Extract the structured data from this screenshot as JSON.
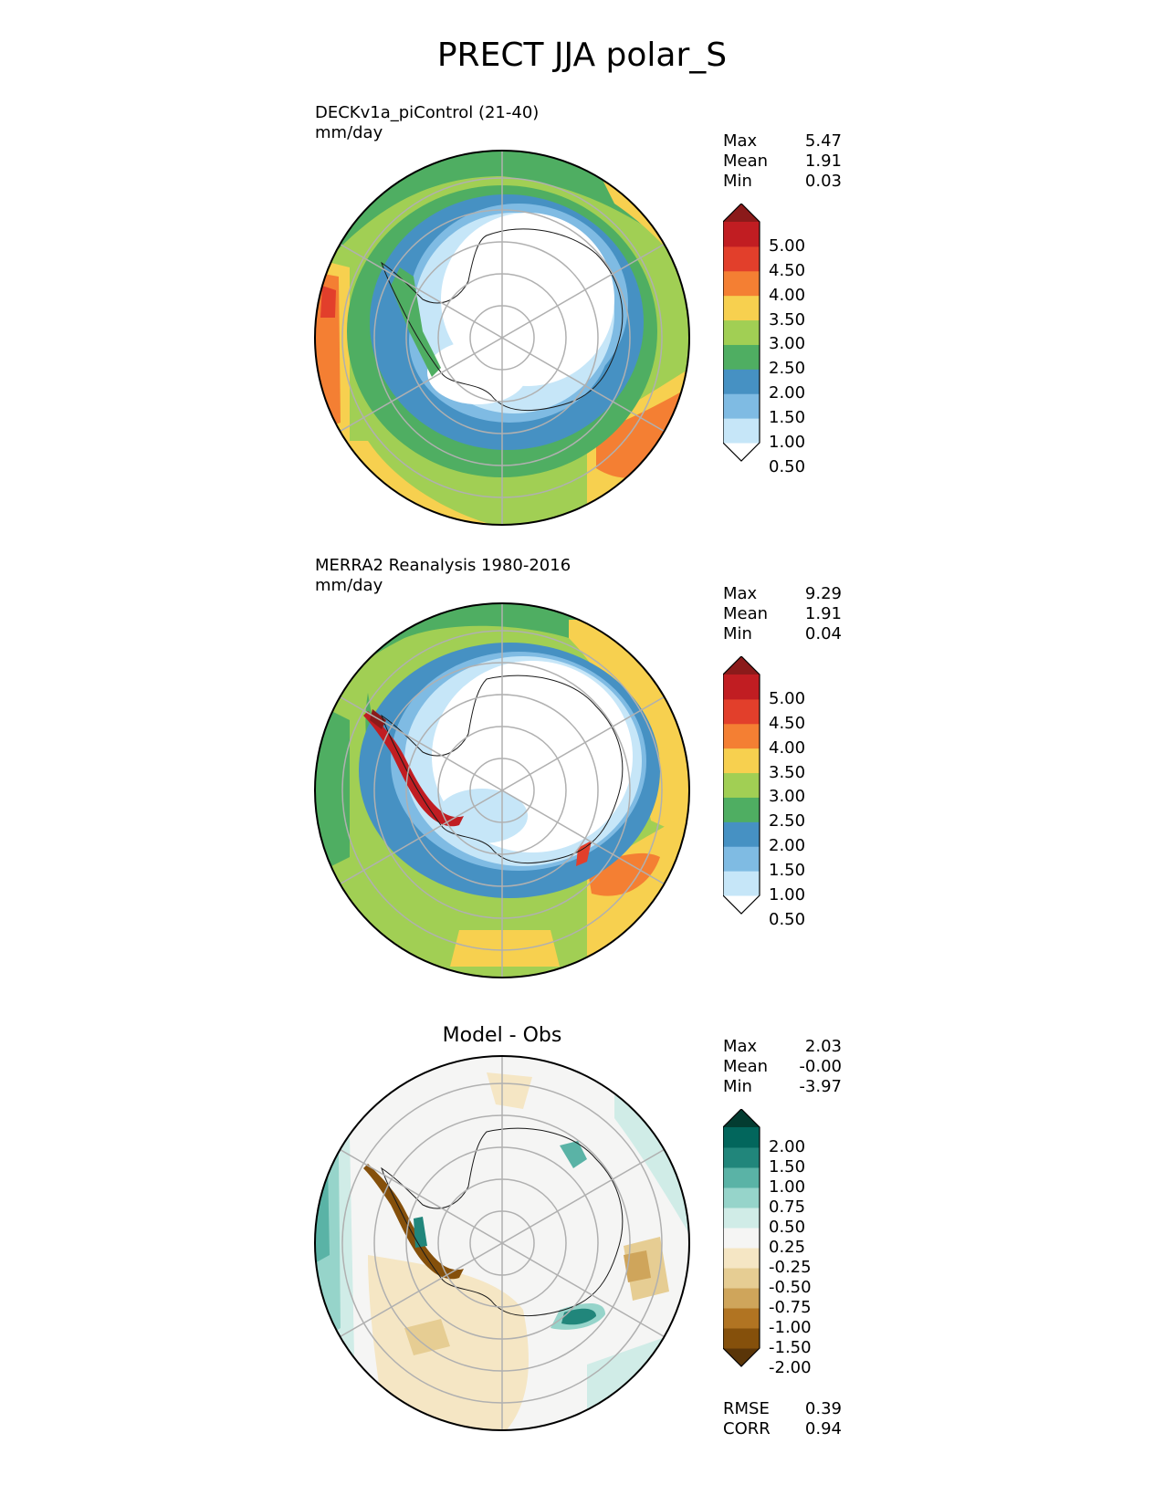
{
  "figure": {
    "title": "PRECT JJA polar_S"
  },
  "panels": [
    {
      "id": "test",
      "title_line1": "DECKv1a_piControl (21-40)",
      "title_line2": "mm/day",
      "stats": [
        {
          "label": "Max",
          "value": "5.47"
        },
        {
          "label": "Mean",
          "value": "1.91"
        },
        {
          "label": "Min",
          "value": "0.03"
        }
      ]
    },
    {
      "id": "ref",
      "title_line1": "MERRA2 Reanalysis 1980-2016",
      "title_line2": "mm/day",
      "stats": [
        {
          "label": "Max",
          "value": "9.29"
        },
        {
          "label": "Mean",
          "value": "1.91"
        },
        {
          "label": "Min",
          "value": "0.04"
        }
      ]
    },
    {
      "id": "diff",
      "title": "Model - Obs",
      "stats": [
        {
          "label": "Max",
          "value": "2.03"
        },
        {
          "label": "Mean",
          "value": "-0.00"
        },
        {
          "label": "Min",
          "value": "-3.97"
        }
      ],
      "metrics": [
        {
          "label": "RMSE",
          "value": "0.39"
        },
        {
          "label": "CORR",
          "value": "0.94"
        }
      ]
    }
  ],
  "colorbars": {
    "precip": {
      "labels": [
        "5.00",
        "4.50",
        "4.00",
        "3.50",
        "3.00",
        "2.50",
        "2.00",
        "1.50",
        "1.00",
        "0.50"
      ],
      "colors": [
        "#ffffff",
        "#c6e6f8",
        "#7fbbe3",
        "#4691c3",
        "#4fae62",
        "#a1cf54",
        "#f7d04f",
        "#f47f33",
        "#e23f2b",
        "#c11d22",
        "#8b1a1a"
      ]
    },
    "diff": {
      "labels": [
        "2.00",
        "1.50",
        "1.00",
        "0.75",
        "0.50",
        "0.25",
        "-0.25",
        "-0.50",
        "-0.75",
        "-1.00",
        "-1.50",
        "-2.00"
      ],
      "colors": [
        "#5a3508",
        "#85500b",
        "#b17422",
        "#cfa55b",
        "#e6cd93",
        "#f5e6c4",
        "#f5f5f4",
        "#d0ece7",
        "#96d4ca",
        "#5ab3a6",
        "#21867b",
        "#02665c",
        "#033c31"
      ]
    }
  },
  "chart_data": [
    {
      "type": "heatmap",
      "title": "DECKv1a_piControl (21-40)",
      "units": "mm/day",
      "projection": "south polar stereographic",
      "levels": [
        0.5,
        1.0,
        1.5,
        2.0,
        2.5,
        3.0,
        3.5,
        4.0,
        4.5,
        5.0
      ],
      "max": 5.47,
      "mean": 1.91,
      "min": 0.03
    },
    {
      "type": "heatmap",
      "title": "MERRA2 Reanalysis 1980-2016",
      "units": "mm/day",
      "projection": "south polar stereographic",
      "levels": [
        0.5,
        1.0,
        1.5,
        2.0,
        2.5,
        3.0,
        3.5,
        4.0,
        4.5,
        5.0
      ],
      "max": 9.29,
      "mean": 1.91,
      "min": 0.04
    },
    {
      "type": "heatmap",
      "title": "Model - Obs",
      "projection": "south polar stereographic",
      "levels": [
        -2.0,
        -1.5,
        -1.0,
        -0.75,
        -0.5,
        -0.25,
        0.25,
        0.5,
        0.75,
        1.0,
        1.5,
        2.0
      ],
      "max": 2.03,
      "mean": -0.0,
      "min": -3.97,
      "rmse": 0.39,
      "corr": 0.94
    }
  ]
}
